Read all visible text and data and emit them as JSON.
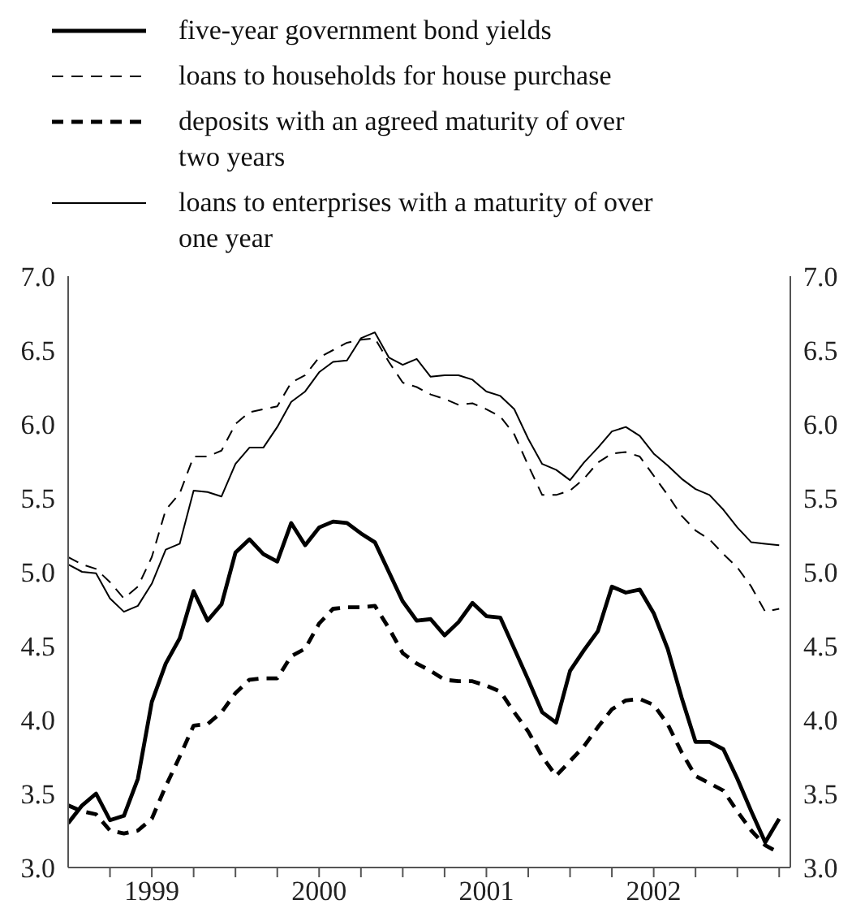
{
  "chart_data": {
    "type": "line",
    "x": [
      "1999-01",
      "1999-02",
      "1999-03",
      "1999-04",
      "1999-05",
      "1999-06",
      "1999-07",
      "1999-08",
      "1999-09",
      "1999-10",
      "1999-11",
      "1999-12",
      "2000-01",
      "2000-02",
      "2000-03",
      "2000-04",
      "2000-05",
      "2000-06",
      "2000-07",
      "2000-08",
      "2000-09",
      "2000-10",
      "2000-11",
      "2000-12",
      "2001-01",
      "2001-02",
      "2001-03",
      "2001-04",
      "2001-05",
      "2001-06",
      "2001-07",
      "2001-08",
      "2001-09",
      "2001-10",
      "2001-11",
      "2001-12",
      "2002-01",
      "2002-02",
      "2002-03",
      "2002-04",
      "2002-05",
      "2002-06",
      "2002-07",
      "2002-08",
      "2002-09",
      "2002-10",
      "2002-11",
      "2002-12",
      "2003-01",
      "2003-02",
      "2003-03",
      "2003-04"
    ],
    "series": [
      {
        "name": "five-year government bond yields",
        "color": "#000000",
        "line_style": "solid",
        "values": [
          3.3,
          3.42,
          3.5,
          3.32,
          3.35,
          3.6,
          4.12,
          4.38,
          4.55,
          4.87,
          4.67,
          4.78,
          5.13,
          5.22,
          5.12,
          5.07,
          5.33,
          5.18,
          5.3,
          5.34,
          5.33,
          5.26,
          5.2,
          5.0,
          4.8,
          4.67,
          4.68,
          4.57,
          4.66,
          4.79,
          4.7,
          4.69,
          4.48,
          4.27,
          4.05,
          3.98,
          4.33,
          4.47,
          4.6,
          4.9,
          4.86,
          4.88,
          4.72,
          4.48,
          4.15,
          3.85,
          3.85,
          3.8,
          3.6,
          3.38,
          3.17,
          3.33
        ]
      },
      {
        "name": "loans to households for house purchase",
        "color": "#000000",
        "line_style": "dashed",
        "values": [
          5.1,
          5.05,
          5.02,
          4.93,
          4.82,
          4.9,
          5.1,
          5.42,
          5.53,
          5.78,
          5.78,
          5.82,
          6.0,
          6.08,
          6.1,
          6.12,
          6.28,
          6.33,
          6.45,
          6.5,
          6.55,
          6.57,
          6.58,
          6.42,
          6.28,
          6.25,
          6.2,
          6.17,
          6.13,
          6.14,
          6.1,
          6.05,
          5.93,
          5.72,
          5.52,
          5.52,
          5.55,
          5.63,
          5.74,
          5.8,
          5.81,
          5.78,
          5.65,
          5.52,
          5.38,
          5.28,
          5.22,
          5.12,
          5.03,
          4.9,
          4.73,
          4.75
        ]
      },
      {
        "name": "deposits with an agreed maturity of over two years",
        "color": "#000000",
        "line_style": "dashed",
        "values": [
          3.42,
          3.38,
          3.36,
          3.25,
          3.23,
          3.25,
          3.33,
          3.55,
          3.75,
          3.96,
          3.97,
          4.05,
          4.18,
          4.27,
          4.28,
          4.28,
          4.43,
          4.48,
          4.65,
          4.75,
          4.76,
          4.76,
          4.77,
          4.62,
          4.45,
          4.38,
          4.33,
          4.27,
          4.26,
          4.26,
          4.23,
          4.19,
          4.05,
          3.92,
          3.75,
          3.62,
          3.72,
          3.82,
          3.95,
          4.07,
          4.13,
          4.14,
          4.1,
          3.97,
          3.78,
          3.62,
          3.57,
          3.52,
          3.38,
          3.25,
          3.15,
          3.1
        ]
      },
      {
        "name": "loans to enterprises with a maturity of over one year",
        "color": "#000000",
        "line_style": "solid",
        "values": [
          5.05,
          5.0,
          4.99,
          4.82,
          4.73,
          4.77,
          4.92,
          5.15,
          5.19,
          5.55,
          5.54,
          5.51,
          5.73,
          5.84,
          5.84,
          5.98,
          6.15,
          6.22,
          6.35,
          6.42,
          6.43,
          6.58,
          6.62,
          6.45,
          6.4,
          6.44,
          6.32,
          6.33,
          6.33,
          6.3,
          6.22,
          6.19,
          6.1,
          5.9,
          5.73,
          5.69,
          5.62,
          5.74,
          5.84,
          5.95,
          5.98,
          5.92,
          5.8,
          5.72,
          5.63,
          5.56,
          5.52,
          5.42,
          5.3,
          5.2,
          5.19,
          5.18
        ]
      }
    ],
    "xlim": [
      "1999-01",
      "2003-04-25"
    ],
    "xticks": [
      {
        "value": "1999-04",
        "label": null
      },
      {
        "value": "1999-07",
        "label": "1999"
      },
      {
        "value": "1999-10",
        "label": null
      },
      {
        "value": "2000-01",
        "label": null
      },
      {
        "value": "2000-04",
        "label": null
      },
      {
        "value": "2000-07",
        "label": "2000"
      },
      {
        "value": "2000-10",
        "label": null
      },
      {
        "value": "2001-01",
        "label": null
      },
      {
        "value": "2001-04",
        "label": null
      },
      {
        "value": "2001-07",
        "label": "2001"
      },
      {
        "value": "2001-10",
        "label": null
      },
      {
        "value": "2002-01",
        "label": null
      },
      {
        "value": "2002-04",
        "label": null
      },
      {
        "value": "2002-07",
        "label": "2002"
      },
      {
        "value": "2002-10",
        "label": null
      },
      {
        "value": "2003-01",
        "label": null
      },
      {
        "value": "2003-04",
        "label": null
      }
    ],
    "ylim": [
      3,
      7
    ],
    "yticks": [
      {
        "value": 3,
        "label": "3.0"
      },
      {
        "value": 3.5,
        "label": "3.5"
      },
      {
        "value": 4,
        "label": "4.0"
      },
      {
        "value": 4.5,
        "label": "4.5"
      },
      {
        "value": 5,
        "label": "5.0"
      },
      {
        "value": 5.5,
        "label": "5.5"
      },
      {
        "value": 6,
        "label": "6.0"
      },
      {
        "value": 6.5,
        "label": "6.5"
      },
      {
        "value": 7,
        "label": "7.0"
      }
    ],
    "y2lim": [
      3,
      7
    ],
    "y2ticks": [
      {
        "value": 3,
        "label": "3.0"
      },
      {
        "value": 3.5,
        "label": "3.5"
      },
      {
        "value": 4,
        "label": "4.0"
      },
      {
        "value": 4.5,
        "label": "4.5"
      },
      {
        "value": 5,
        "label": "5.0"
      },
      {
        "value": 5.5,
        "label": "5.5"
      },
      {
        "value": 6,
        "label": "6.0"
      },
      {
        "value": 6.5,
        "label": "6.5"
      },
      {
        "value": 7,
        "label": "7.0"
      }
    ],
    "legend": "top left"
  }
}
